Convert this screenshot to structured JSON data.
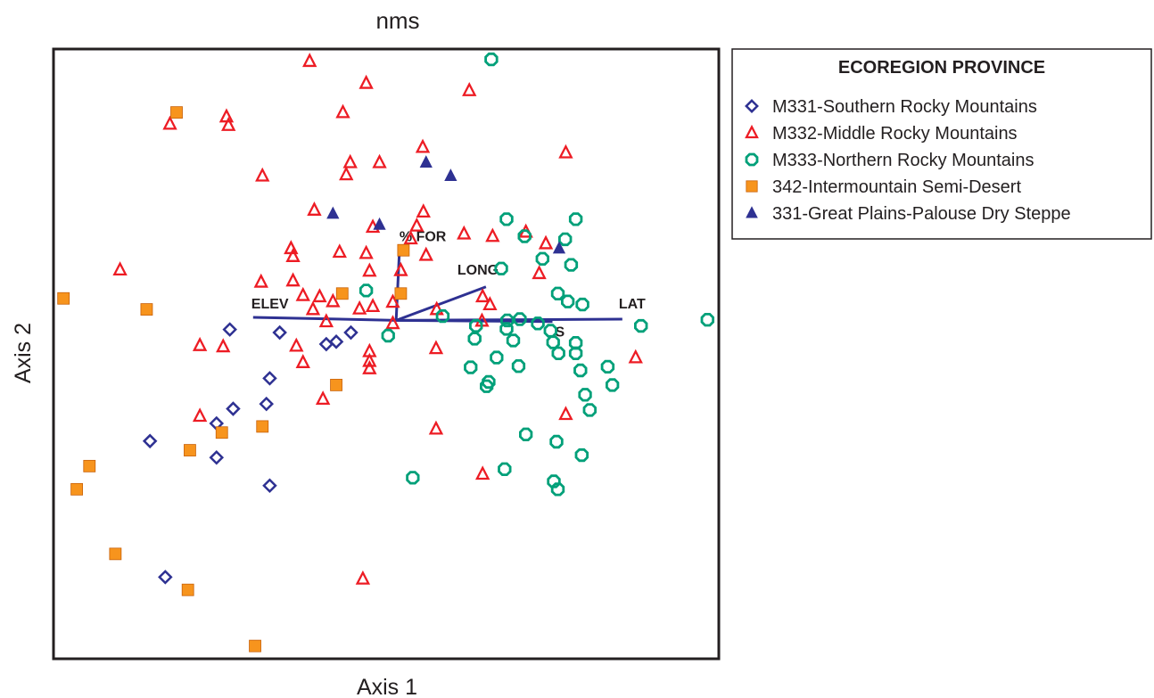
{
  "chart_data": {
    "type": "scatter",
    "title": "nms",
    "xlabel": "Axis 1",
    "ylabel": "Axis 2",
    "xlim": [
      0,
      100
    ],
    "ylim": [
      0,
      100
    ],
    "grid": false,
    "legend": {
      "title": "ECOREGION PROVINCE",
      "placement": "right"
    },
    "biplot_origin": [
      51.5,
      55.5
    ],
    "vectors": [
      {
        "label": "ELEV",
        "x": 30,
        "y": 56
      },
      {
        "label": "% FOR",
        "x": 52,
        "y": 67
      },
      {
        "label": "LONG",
        "x": 65,
        "y": 61
      },
      {
        "label": "LAT",
        "x": 85.5,
        "y": 55.7
      },
      {
        "label": "S",
        "x": 75,
        "y": 55.3
      }
    ],
    "series": [
      {
        "name": "M331-Southern Rocky Mountains",
        "marker": "diamond",
        "color": "#2e3192",
        "points": [
          [
            26.5,
            54
          ],
          [
            34,
            53.5
          ],
          [
            44.7,
            53.5
          ],
          [
            42.5,
            52
          ],
          [
            41,
            51.6
          ],
          [
            32.5,
            46
          ],
          [
            32,
            41.8
          ],
          [
            27,
            41
          ],
          [
            24.5,
            38.6
          ],
          [
            14.5,
            35.7
          ],
          [
            24.5,
            33
          ],
          [
            32.5,
            28.4
          ],
          [
            16.8,
            13.4
          ]
        ]
      },
      {
        "name": "M332-Middle Rocky Mountains",
        "marker": "triangle",
        "color": "#ed1c24",
        "points": [
          [
            38.5,
            98
          ],
          [
            47,
            94.4
          ],
          [
            62.5,
            93.2
          ],
          [
            43.5,
            89.6
          ],
          [
            26,
            88.9
          ],
          [
            17.5,
            87.7
          ],
          [
            26.3,
            87.5
          ],
          [
            55.5,
            83.9
          ],
          [
            77,
            83
          ],
          [
            44.6,
            81.4
          ],
          [
            49,
            81.4
          ],
          [
            44,
            79.4
          ],
          [
            31.4,
            79.2
          ],
          [
            39.2,
            73.6
          ],
          [
            55.6,
            73.3
          ],
          [
            54.6,
            71
          ],
          [
            48,
            70.8
          ],
          [
            53.7,
            68.9
          ],
          [
            35.7,
            67.3
          ],
          [
            61.7,
            69.7
          ],
          [
            66,
            69.3
          ],
          [
            71,
            70
          ],
          [
            74,
            68.1
          ],
          [
            36,
            66
          ],
          [
            43,
            66.7
          ],
          [
            47,
            66.5
          ],
          [
            56,
            66.2
          ],
          [
            10,
            63.8
          ],
          [
            47.5,
            63.6
          ],
          [
            52.2,
            63.7
          ],
          [
            73,
            63.2
          ],
          [
            31.2,
            61.8
          ],
          [
            36,
            62
          ],
          [
            37.5,
            59.6
          ],
          [
            40,
            59.4
          ],
          [
            42,
            58.6
          ],
          [
            39,
            57.3
          ],
          [
            46,
            57.4
          ],
          [
            48,
            57.8
          ],
          [
            51,
            58.5
          ],
          [
            57.6,
            57.3
          ],
          [
            64.5,
            59.4
          ],
          [
            65.6,
            58.1
          ],
          [
            64.4,
            55.4
          ],
          [
            41,
            55.3
          ],
          [
            51,
            55
          ],
          [
            22,
            51.4
          ],
          [
            25.5,
            51.2
          ],
          [
            36.5,
            51.3
          ],
          [
            47.5,
            50.4
          ],
          [
            57.5,
            50.9
          ],
          [
            37.5,
            48.6
          ],
          [
            47.5,
            48.8
          ],
          [
            47.5,
            47.6
          ],
          [
            87.5,
            49.4
          ],
          [
            40.5,
            42.6
          ],
          [
            22,
            39.8
          ],
          [
            57.5,
            37.7
          ],
          [
            77,
            40.1
          ],
          [
            64.5,
            30.3
          ],
          [
            46.5,
            13.1
          ]
        ]
      },
      {
        "name": "M333-Northern Rocky Mountains",
        "marker": "octagon",
        "color": "#00a079",
        "points": [
          [
            65.8,
            98.3
          ],
          [
            68.1,
            72.1
          ],
          [
            78.5,
            72.1
          ],
          [
            70.8,
            69.3
          ],
          [
            76.9,
            68.8
          ],
          [
            73.5,
            65.6
          ],
          [
            77.8,
            64.6
          ],
          [
            67.3,
            64
          ],
          [
            47,
            60.4
          ],
          [
            75.8,
            59.9
          ],
          [
            77.3,
            58.6
          ],
          [
            79.5,
            58.1
          ],
          [
            58.5,
            56.2
          ],
          [
            68.2,
            55.5
          ],
          [
            70.1,
            55.7
          ],
          [
            72.8,
            55
          ],
          [
            63.5,
            54.6
          ],
          [
            68.1,
            54.1
          ],
          [
            74.7,
            53.8
          ],
          [
            88.3,
            54.6
          ],
          [
            98.3,
            55.6
          ],
          [
            50.3,
            53
          ],
          [
            63.3,
            52.5
          ],
          [
            69.1,
            52.2
          ],
          [
            75.1,
            51.9
          ],
          [
            78.5,
            51.8
          ],
          [
            78.5,
            50.1
          ],
          [
            75.9,
            50.1
          ],
          [
            66.6,
            49.4
          ],
          [
            69.9,
            48
          ],
          [
            62.7,
            47.8
          ],
          [
            79.2,
            47.3
          ],
          [
            83.3,
            47.9
          ],
          [
            65.4,
            45.4
          ],
          [
            84,
            44.9
          ],
          [
            65.1,
            44.7
          ],
          [
            79.9,
            43.3
          ],
          [
            80.6,
            40.8
          ],
          [
            71,
            36.8
          ],
          [
            75.6,
            35.6
          ],
          [
            79.4,
            33.4
          ],
          [
            67.8,
            31.1
          ],
          [
            54,
            29.7
          ],
          [
            75.2,
            29.1
          ],
          [
            75.8,
            27.8
          ]
        ]
      },
      {
        "name": "342-Intermountain Semi-Desert",
        "marker": "square",
        "color": "#f7941d",
        "points": [
          [
            18.5,
            89.6
          ],
          [
            52.6,
            67
          ],
          [
            43.4,
            59.9
          ],
          [
            52.2,
            59.9
          ],
          [
            1.5,
            59.1
          ],
          [
            14,
            57.3
          ],
          [
            42.5,
            44.9
          ],
          [
            31.4,
            38.1
          ],
          [
            25.3,
            37.1
          ],
          [
            20.5,
            34.2
          ],
          [
            5.4,
            31.6
          ],
          [
            3.5,
            27.8
          ],
          [
            9.3,
            17.2
          ],
          [
            20.2,
            11.3
          ],
          [
            30.3,
            2.1
          ]
        ]
      },
      {
        "name": "331-Great Plains-Palouse Dry Steppe",
        "marker": "triangle-filled",
        "color": "#2e3192",
        "points": [
          [
            56,
            81.4
          ],
          [
            59.7,
            79.2
          ],
          [
            42,
            73
          ],
          [
            49,
            71.2
          ],
          [
            76,
            67.3
          ]
        ]
      }
    ]
  }
}
